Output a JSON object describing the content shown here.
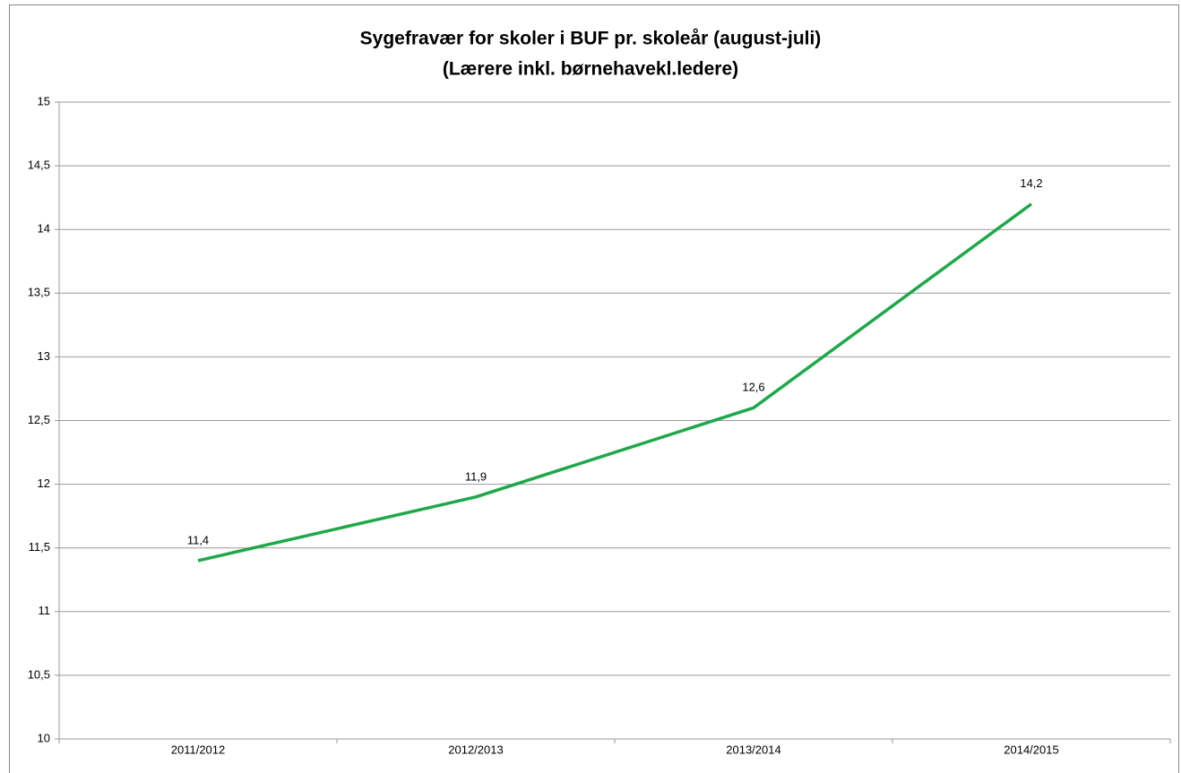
{
  "chart_data": {
    "type": "line",
    "title": "Sygefravær for skoler i BUF pr. skoleår (august-juli)",
    "subtitle": "(Lærere inkl. børnehavekl.ledere)",
    "categories": [
      "2011/2012",
      "2012/2013",
      "2013/2014",
      "2014/2015"
    ],
    "series": [
      {
        "color": "#1ea84a",
        "values": [
          11.4,
          11.9,
          12.6,
          14.2
        ],
        "value_labels": [
          "11,4",
          "11,9",
          "12,6",
          "14,2"
        ]
      }
    ],
    "ylim": [
      10,
      15
    ],
    "yticks": [
      10,
      {
        "value": 10.5,
        "label": "10,5"
      },
      11,
      {
        "value": 11.5,
        "label": "11,5"
      },
      12,
      {
        "value": 12.5,
        "label": "12,5"
      },
      13,
      {
        "value": 13.5,
        "label": "13,5"
      },
      14,
      {
        "value": 14.5,
        "label": "14,5"
      },
      15
    ],
    "grid": true
  }
}
